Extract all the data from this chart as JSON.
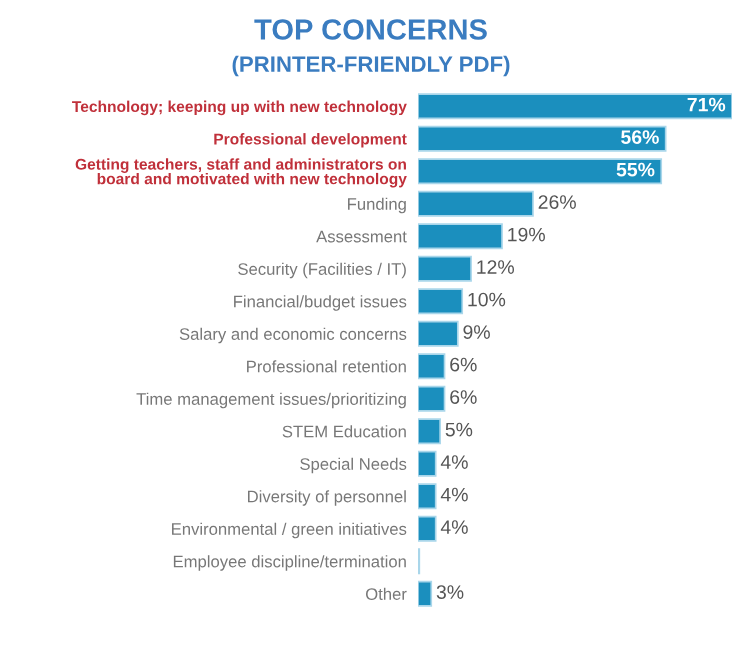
{
  "chart_data": {
    "type": "bar",
    "orientation": "horizontal",
    "title": "TOP CONCERNS",
    "subtitle": "(PRINTER-FRIENDLY PDF)",
    "categories": [
      "Technology; keeping up with new technology",
      "Professional development",
      "Getting teachers, staff and administrators on\nboard and motivated with new technology",
      "Funding",
      "Assessment",
      "Security (Facilities / IT)",
      "Financial/budget issues",
      "Salary and economic concerns",
      "Professional retention",
      "Time management issues/prioritizing",
      "STEM Education",
      "Special Needs",
      "Diversity of personnel",
      "Environmental / green initiatives",
      "Employee discipline/termination",
      "Other"
    ],
    "values": [
      71,
      56,
      55,
      26,
      19,
      12,
      10,
      9,
      6,
      6,
      5,
      4,
      4,
      4,
      0.3,
      3
    ],
    "value_labels": [
      "71%",
      "56%",
      "55%",
      "26%",
      "19%",
      "12%",
      "10%",
      "9%",
      "6%",
      "6%",
      "5%",
      "4%",
      "4%",
      "4%",
      null,
      "3%"
    ],
    "color": "#1b8fbe",
    "xlim": [
      0,
      71
    ],
    "tick_labels": "y",
    "grid": false,
    "legend": false
  }
}
